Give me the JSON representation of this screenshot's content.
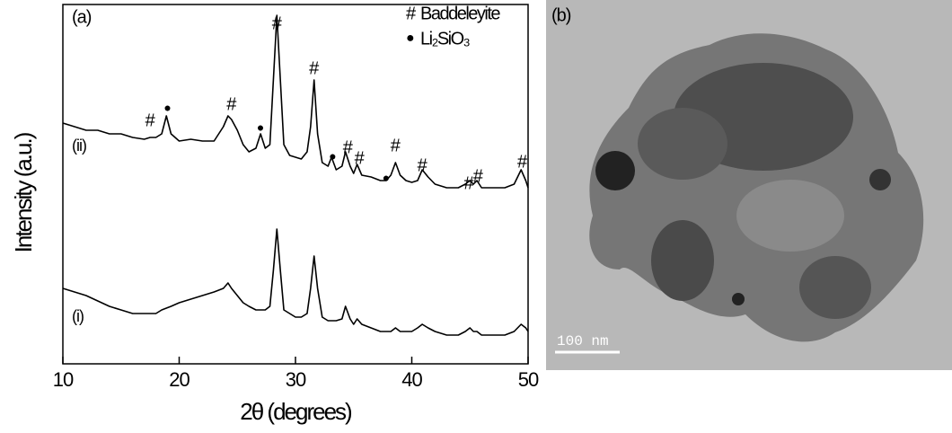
{
  "chart_data": {
    "type": "line",
    "panel_label": "(a)",
    "xlabel": "2θ (degrees)",
    "ylabel": "Intensity (a.u.)",
    "x": [
      10,
      11,
      12,
      13,
      14,
      15,
      16,
      17,
      17.5,
      18,
      18.5,
      18.9,
      19.3,
      20,
      21,
      22,
      23,
      23.8,
      24.2,
      24.5,
      25,
      25.5,
      26,
      26.6,
      27,
      27.4,
      27.8,
      28.1,
      28.4,
      28.7,
      29,
      29.5,
      30,
      30.5,
      31,
      31.3,
      31.6,
      31.9,
      32.3,
      32.8,
      33.1,
      33.5,
      34,
      34.3,
      34.7,
      35,
      35.3,
      35.7,
      36.5,
      37.3,
      37.8,
      38.2,
      38.6,
      39,
      39.5,
      40,
      40.5,
      40.9,
      41.4,
      42,
      43,
      44,
      44.6,
      45,
      45.3,
      45.6,
      46,
      47,
      48,
      48.8,
      49.4,
      49.8,
      50
    ],
    "series": [
      {
        "name": "(ii)",
        "color": "#000000",
        "values": [
          67,
          66,
          65,
          65,
          64,
          64,
          63,
          62.5,
          63,
          63,
          64,
          69,
          64,
          62,
          62.5,
          62,
          62,
          66,
          69,
          68,
          65,
          61,
          59,
          60,
          64,
          60,
          61,
          79,
          97,
          79,
          61,
          58,
          57.5,
          57,
          59,
          66,
          79,
          64,
          56,
          55,
          57.5,
          54,
          55,
          59,
          55,
          53,
          55.5,
          52.5,
          52,
          51,
          51,
          52.5,
          56,
          52.5,
          51,
          50.5,
          51,
          54,
          52,
          50,
          49,
          49,
          50,
          51,
          50,
          51,
          49,
          49,
          49,
          50,
          54,
          51,
          49
        ]
      },
      {
        "name": "(i)",
        "color": "#000000",
        "values": [
          21,
          20,
          19,
          17.5,
          16,
          15,
          14,
          14,
          14,
          14,
          15,
          15.5,
          16,
          17,
          18,
          19,
          20,
          21,
          22.5,
          21,
          19,
          17,
          16,
          15,
          15,
          15,
          16,
          26,
          37.5,
          26,
          15,
          14,
          13,
          13,
          14,
          21,
          30,
          21,
          13,
          12,
          12,
          12,
          12.5,
          16,
          12.5,
          11,
          12.5,
          11,
          10,
          9,
          9,
          9,
          10,
          9,
          9,
          9,
          10,
          11,
          10,
          9,
          8,
          8,
          9,
          10,
          9,
          9,
          8,
          8,
          8,
          9,
          11,
          10,
          9
        ]
      }
    ],
    "xlim": [
      10,
      50
    ],
    "xticks": [
      10,
      20,
      30,
      40,
      50
    ],
    "ylim": [
      0,
      100
    ],
    "legend_items": [
      {
        "symbol": "#",
        "label": "Baddeleyite"
      },
      {
        "symbol": "●",
        "label": "Li₂SiO₃"
      }
    ],
    "annotations": [
      {
        "text": "#",
        "x": 17.5,
        "y": 67.5
      },
      {
        "text": "●",
        "x": 19.0,
        "y": 71
      },
      {
        "text": "#",
        "x": 24.5,
        "y": 72
      },
      {
        "text": "●",
        "x": 27.0,
        "y": 65.5
      },
      {
        "text": "#",
        "x": 28.4,
        "y": 94.5
      },
      {
        "text": "#",
        "x": 31.6,
        "y": 82
      },
      {
        "text": "●",
        "x": 33.2,
        "y": 57.5
      },
      {
        "text": "#",
        "x": 34.5,
        "y": 60
      },
      {
        "text": "#",
        "x": 35.5,
        "y": 57
      },
      {
        "text": "●",
        "x": 37.8,
        "y": 51.5
      },
      {
        "text": "#",
        "x": 38.6,
        "y": 60.5
      },
      {
        "text": "#",
        "x": 40.9,
        "y": 55
      },
      {
        "text": "#",
        "x": 44.9,
        "y": 50
      },
      {
        "text": "#",
        "x": 45.7,
        "y": 52
      },
      {
        "text": "#",
        "x": 49.5,
        "y": 56
      }
    ]
  },
  "panel_b": {
    "label": "(b)",
    "scale_bar": "100 nm"
  }
}
